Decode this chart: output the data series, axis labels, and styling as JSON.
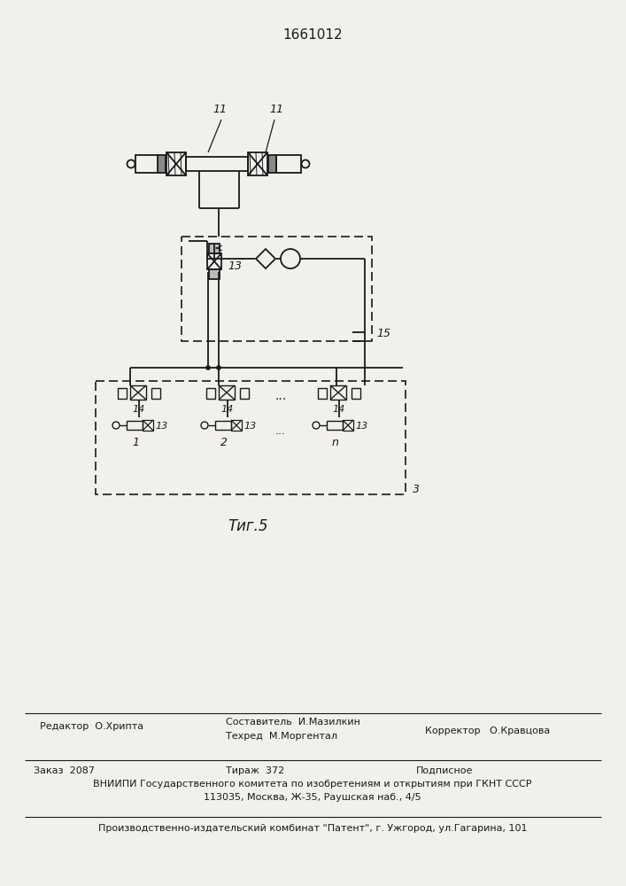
{
  "title": "1661012",
  "figure_label": "Τиг.5",
  "background_color": "#f2f0ed",
  "line_color": "#1a1a1a",
  "label_11_left": "11",
  "label_11_right": "11",
  "label_13_mid": "13",
  "label_15": "15",
  "label_14_1": "14",
  "label_14_2": "14",
  "label_14_3": "14",
  "label_13_1": "13",
  "label_13_2": "13",
  "label_13_3": "13",
  "label_1": "1",
  "label_2": "2",
  "label_n": "n",
  "label_3": "3",
  "dots": "...",
  "editor_label": "Редактор",
  "editor_name": "О.Хрипта",
  "composer_label": "Составитель",
  "composer_name": "И.Мазилкин",
  "techred_label": "Техред",
  "techred_name": "М.Моргентал",
  "corrector_label": "Корректор",
  "corrector_name": "О.Кравцова",
  "order_label": "Заказ",
  "order_num": "2087",
  "tirazh_label": "Тираж",
  "tirazh_num": "372",
  "podpisnoe": "Подписное",
  "vniiipi_line1": "ВНИИПИ Государственного комитета по изобретениям и открытиям при ГКНТ СССР",
  "vniiipi_line2": "113035, Москва, Ж-35, Раушская наб., 4/5",
  "publisher_line": "Производственно-издательский комбинат \"Патент\", г. Ужгород, ул.Гагарина, 101"
}
